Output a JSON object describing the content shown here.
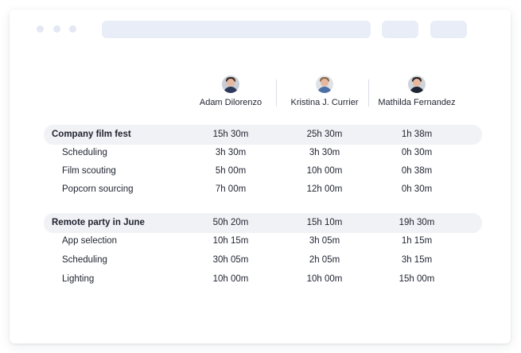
{
  "people": [
    {
      "name": "Adam Dilorenzo"
    },
    {
      "name": "Kristina J. Currier"
    },
    {
      "name": "Mathilda Fernandez"
    }
  ],
  "groups": [
    {
      "name": "Company film fest",
      "totals": [
        "15h 30m",
        "25h 30m",
        "1h 38m"
      ],
      "tasks": [
        {
          "name": "Scheduling",
          "values": [
            "3h 30m",
            "3h 30m",
            "0h 30m"
          ]
        },
        {
          "name": "Film scouting",
          "values": [
            "5h 00m",
            "10h 00m",
            "0h 38m"
          ]
        },
        {
          "name": "Popcorn sourcing",
          "values": [
            "7h 00m",
            "12h 00m",
            "0h 30m"
          ]
        }
      ]
    },
    {
      "name": "Remote party in June",
      "totals": [
        "50h 20m",
        "15h 10m",
        "19h 30m"
      ],
      "tasks": [
        {
          "name": "App selection",
          "values": [
            "10h 15m",
            "3h 05m",
            "1h 15m"
          ]
        },
        {
          "name": "Scheduling",
          "values": [
            "30h 05m",
            "2h 05m",
            "3h 15m"
          ]
        },
        {
          "name": "Lighting",
          "values": [
            "10h 00m",
            "10h 00m",
            "15h 00m"
          ]
        }
      ]
    }
  ]
}
